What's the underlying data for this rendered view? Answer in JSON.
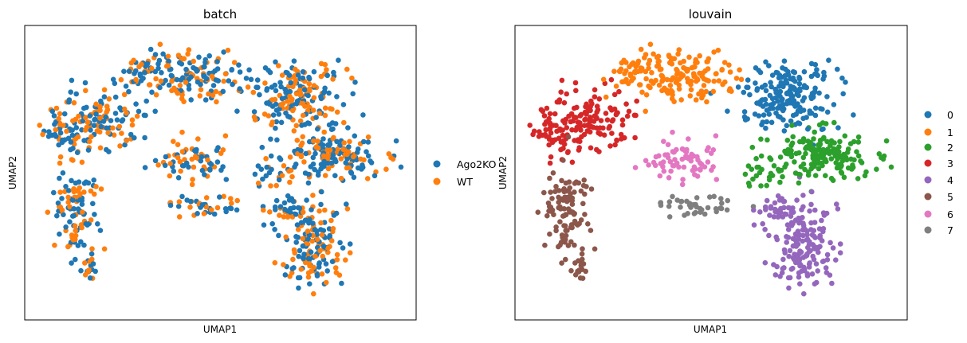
{
  "charts": [
    {
      "id": "batch",
      "title": "batch",
      "xlabel": "UMAP1",
      "ylabel": "UMAP2",
      "legend": [
        {
          "label": "Ago2KO",
          "color": "#1f77b4"
        },
        {
          "label": "WT",
          "color": "#ff7f0e"
        }
      ]
    },
    {
      "id": "louvain",
      "title": "louvain",
      "xlabel": "UMAP1",
      "ylabel": "UMAP2",
      "legend": [
        {
          "label": "0",
          "color": "#1f77b4"
        },
        {
          "label": "1",
          "color": "#ff7f0e"
        },
        {
          "label": "2",
          "color": "#2ca02c"
        },
        {
          "label": "3",
          "color": "#d62728"
        },
        {
          "label": "4",
          "color": "#9467bd"
        },
        {
          "label": "5",
          "color": "#8c564b"
        },
        {
          "label": "6",
          "color": "#e377c2"
        },
        {
          "label": "7",
          "color": "#7f7f7f"
        }
      ]
    }
  ],
  "chart_data": [
    {
      "type": "scatter",
      "title": "batch",
      "xlabel": "UMAP1",
      "ylabel": "UMAP2",
      "ticks": "none",
      "grid": false,
      "legend_position": "right",
      "series": [
        {
          "name": "Ago2KO",
          "color": "#1f77b4"
        },
        {
          "name": "WT",
          "color": "#ff7f0e"
        }
      ]
    },
    {
      "type": "scatter",
      "title": "louvain",
      "xlabel": "UMAP1",
      "ylabel": "UMAP2",
      "ticks": "none",
      "grid": false,
      "legend_position": "right",
      "series": [
        {
          "name": "0",
          "color": "#1f77b4"
        },
        {
          "name": "1",
          "color": "#ff7f0e"
        },
        {
          "name": "2",
          "color": "#2ca02c"
        },
        {
          "name": "3",
          "color": "#d62728"
        },
        {
          "name": "4",
          "color": "#9467bd"
        },
        {
          "name": "5",
          "color": "#8c564b"
        },
        {
          "name": "6",
          "color": "#e377c2"
        },
        {
          "name": "7",
          "color": "#7f7f7f"
        }
      ]
    }
  ]
}
